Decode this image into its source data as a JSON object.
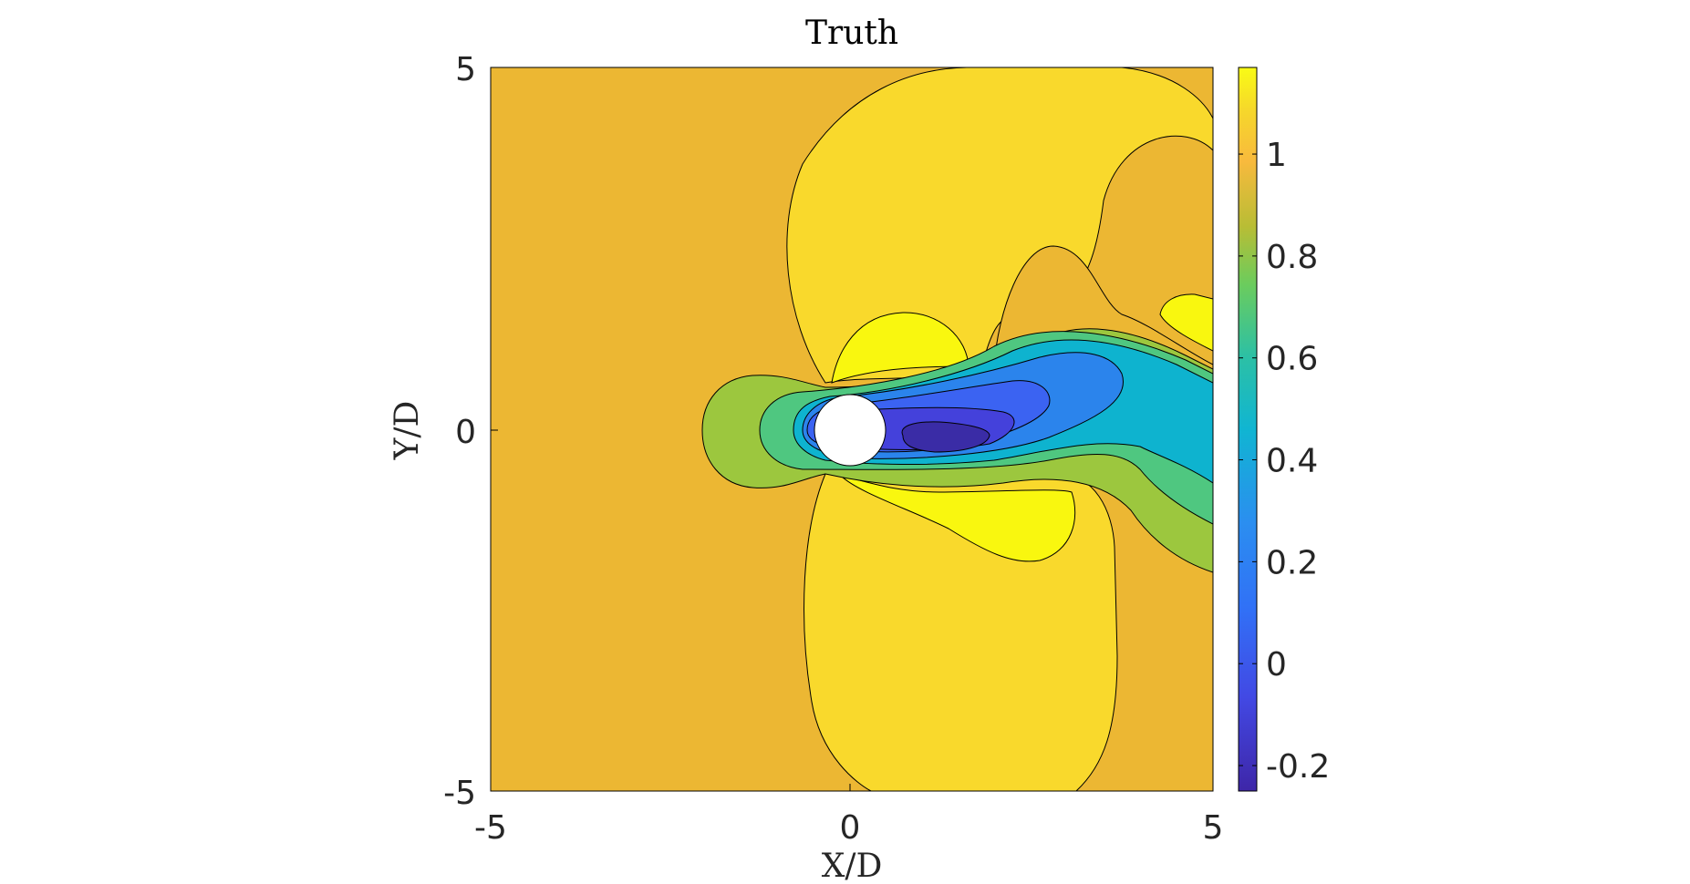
{
  "chart_data": {
    "type": "contour",
    "title": "Truth",
    "xlabel": "X/D",
    "ylabel": "Y/D",
    "xlim": [
      -5,
      5
    ],
    "ylim": [
      -5,
      5
    ],
    "xticks": [
      "-5",
      "0",
      "5"
    ],
    "yticks": [
      "5",
      "0",
      "-5"
    ],
    "obstacle": {
      "shape": "circle",
      "center": [
        0,
        0
      ],
      "diameter": 1
    },
    "colorbar": {
      "colormap": "parula",
      "range": [
        -0.25,
        1.17
      ],
      "ticks": [
        "1",
        "0.8",
        "0.6",
        "0.4",
        "0.2",
        "0",
        "-0.2"
      ],
      "tick_values": [
        1,
        0.8,
        0.6,
        0.4,
        0.2,
        0,
        -0.2
      ]
    },
    "levels": [
      {
        "value": -0.2,
        "color": "#3a2ca6"
      },
      {
        "value": -0.05,
        "color": "#4441db"
      },
      {
        "value": 0.1,
        "color": "#3b63f2"
      },
      {
        "value": 0.25,
        "color": "#2b84ec"
      },
      {
        "value": 0.4,
        "color": "#0eb3cf"
      },
      {
        "value": 0.55,
        "color": "#2fbfa0"
      },
      {
        "value": 0.65,
        "color": "#4fc780"
      },
      {
        "value": 0.8,
        "color": "#9cc73e"
      },
      {
        "value": 0.95,
        "color": "#ecb733"
      },
      {
        "value": 1.05,
        "color": "#f9d92c"
      },
      {
        "value": 1.12,
        "color": "#f9f70f"
      }
    ]
  }
}
